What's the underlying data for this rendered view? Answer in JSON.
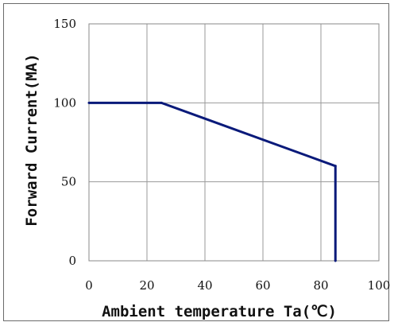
{
  "chart_data": {
    "type": "line",
    "title": "",
    "xlabel": "Ambient temperature Ta(℃)",
    "ylabel": "Forward Current(MA)",
    "xlim": [
      0,
      100
    ],
    "ylim": [
      0,
      150
    ],
    "x_ticks": [
      "0",
      "20",
      "40",
      "60",
      "80",
      "100"
    ],
    "y_ticks": [
      "0",
      "50",
      "100",
      "150"
    ],
    "grid": true,
    "legend": "none",
    "series": [
      {
        "color": "#0a1a7a",
        "points": [
          [
            0,
            100
          ],
          [
            25,
            100
          ],
          [
            85,
            60
          ],
          [
            85,
            0
          ]
        ]
      }
    ]
  }
}
